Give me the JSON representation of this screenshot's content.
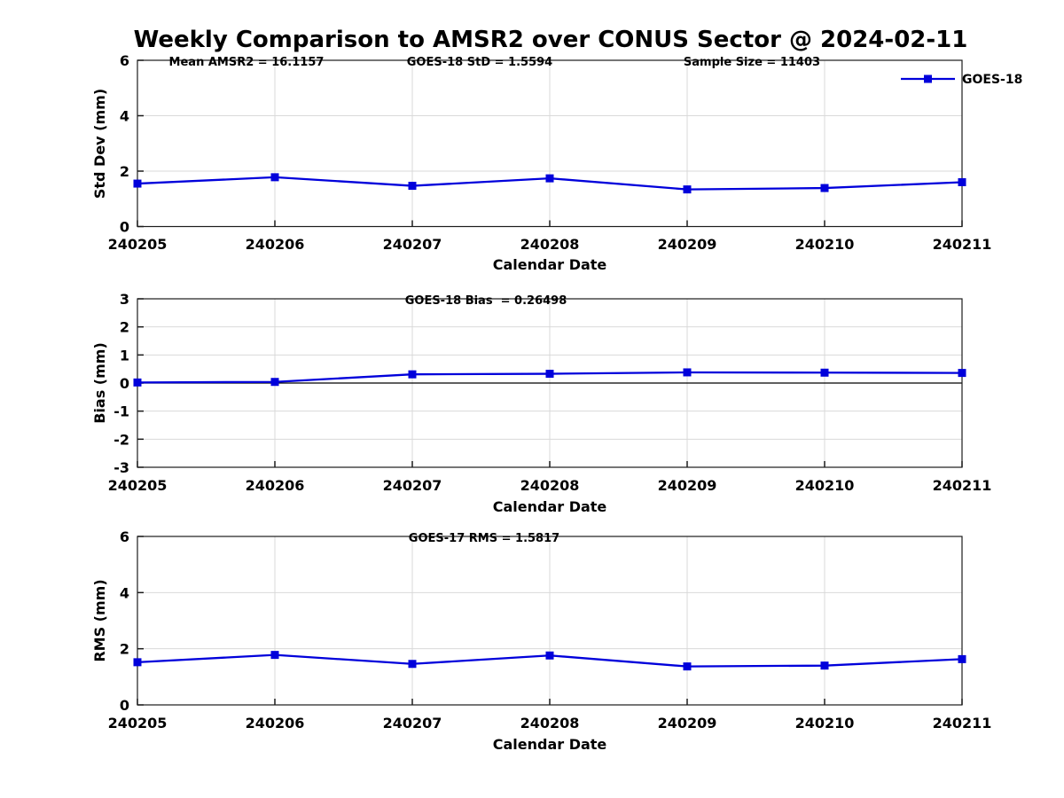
{
  "figure": {
    "title": "Weekly Comparison to AMSR2 over CONUS Sector @ 2024-02-11",
    "legend": {
      "label": "GOES-18",
      "position": "top-right"
    },
    "accent_color": "#0000db",
    "background_color": "#ffffff",
    "stats": {
      "mean_amsr2": 16.1157,
      "goes18_std": 1.5594,
      "sample_size": 11403,
      "goes18_bias": 0.26498,
      "goes17_rms": 1.5817
    }
  },
  "chart_data": {
    "type": "line",
    "color": "#0000db",
    "marker": "square",
    "grid": true,
    "legend_position": "top-right",
    "xlabel": "Calendar Date",
    "categories": [
      "240205",
      "240206",
      "240207",
      "240208",
      "240209",
      "240210",
      "240211"
    ],
    "subplots": [
      {
        "name": "std-dev",
        "ylabel": "Std Dev (mm)",
        "ylim": [
          0,
          6
        ],
        "yticks": [
          0,
          2,
          4,
          6
        ],
        "annotations": [
          {
            "text": "Mean AMSR2 = 16.1157"
          },
          {
            "text": "GOES-18 StD = 1.5594"
          },
          {
            "text": "Sample Size = 11403"
          }
        ],
        "series": [
          {
            "name": "GOES-18",
            "values": [
              1.55,
              1.78,
              1.47,
              1.74,
              1.34,
              1.39,
              1.6
            ]
          }
        ]
      },
      {
        "name": "bias",
        "ylabel": "Bias (mm)",
        "ylim": [
          -3,
          3
        ],
        "yticks": [
          3,
          2,
          1,
          0,
          -1,
          -2,
          -3
        ],
        "zero_line": true,
        "annotations": [
          {
            "text": "GOES-18 Bias  = 0.26498"
          }
        ],
        "series": [
          {
            "name": "GOES-18",
            "values": [
              0.02,
              0.04,
              0.31,
              0.33,
              0.38,
              0.37,
              0.36
            ]
          }
        ]
      },
      {
        "name": "rms",
        "ylabel": "RMS (mm)",
        "ylim": [
          0,
          6
        ],
        "yticks": [
          0,
          2,
          4,
          6
        ],
        "annotations": [
          {
            "text": "GOES-17 RMS = 1.5817"
          }
        ],
        "series": [
          {
            "name": "GOES-18",
            "values": [
              1.52,
              1.78,
              1.46,
              1.76,
              1.37,
              1.4,
              1.63
            ]
          }
        ]
      }
    ]
  }
}
